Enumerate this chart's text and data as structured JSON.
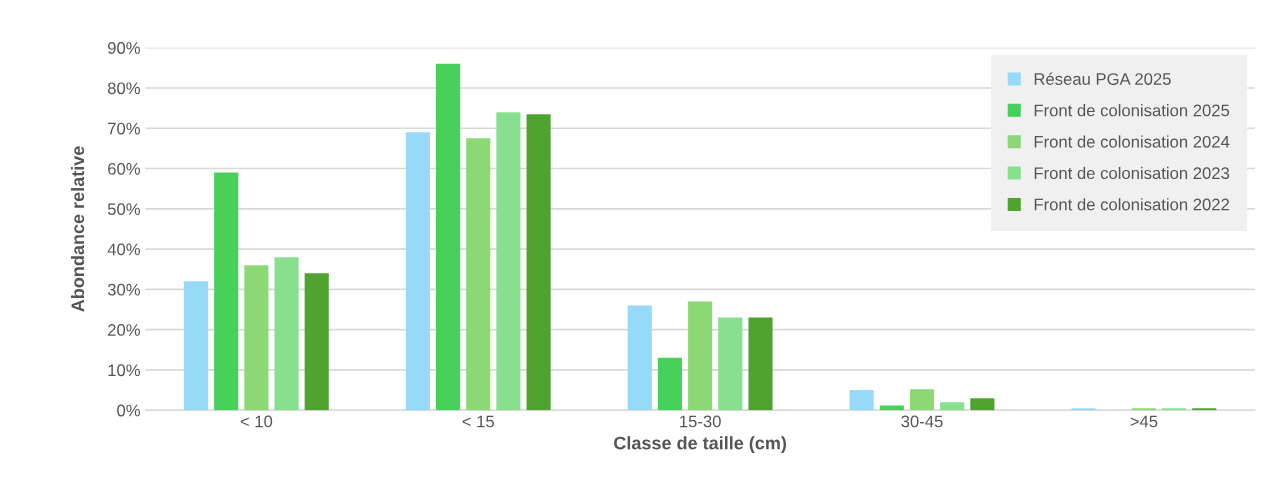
{
  "chart_data": {
    "type": "bar",
    "xlabel": "Classe de taille (cm)",
    "ylabel": "Abondance relative",
    "categories": [
      "< 10",
      "< 15",
      "15-30",
      "30-45",
      ">45"
    ],
    "series": [
      {
        "name": "Réseau PGA 2025",
        "color": "#97daf7",
        "values": [
          32,
          69,
          26,
          5,
          0.5
        ]
      },
      {
        "name": "Front de colonisation 2025",
        "color": "#47d15a",
        "values": [
          59,
          86,
          13,
          1.2,
          0
        ]
      },
      {
        "name": "Front de colonisation 2024",
        "color": "#8cd874",
        "values": [
          36,
          67.5,
          27,
          5.2,
          0.5
        ]
      },
      {
        "name": "Front de colonisation 2023",
        "color": "#86e08e",
        "values": [
          38,
          74,
          23,
          2,
          0.5
        ]
      },
      {
        "name": "Front de colonisation 2022",
        "color": "#4ea42f",
        "values": [
          34,
          73.5,
          23,
          3,
          0.5
        ]
      }
    ],
    "ylim": [
      0,
      90
    ],
    "yticks": [
      {
        "value": 0,
        "label": "0%"
      },
      {
        "value": 10,
        "label": "10%"
      },
      {
        "value": 20,
        "label": "20%"
      },
      {
        "value": 30,
        "label": "30%"
      },
      {
        "value": 40,
        "label": "40%"
      },
      {
        "value": 50,
        "label": "50%"
      },
      {
        "value": 60,
        "label": "60%"
      },
      {
        "value": 70,
        "label": "70%"
      },
      {
        "value": 80,
        "label": "80%"
      },
      {
        "value": 90,
        "label": "90%"
      }
    ],
    "grid": "y",
    "legend": "top right"
  }
}
